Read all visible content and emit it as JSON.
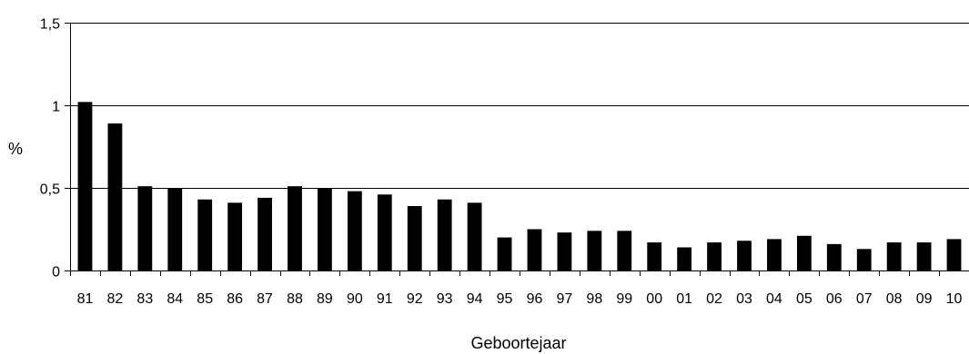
{
  "chart_data": {
    "type": "bar",
    "categories": [
      "81",
      "82",
      "83",
      "84",
      "85",
      "86",
      "87",
      "88",
      "89",
      "90",
      "91",
      "92",
      "93",
      "94",
      "95",
      "96",
      "97",
      "98",
      "99",
      "00",
      "01",
      "02",
      "03",
      "04",
      "05",
      "06",
      "07",
      "08",
      "09",
      "10"
    ],
    "values": [
      1.02,
      0.89,
      0.51,
      0.5,
      0.43,
      0.41,
      0.44,
      0.51,
      0.5,
      0.48,
      0.46,
      0.39,
      0.43,
      0.41,
      0.2,
      0.25,
      0.23,
      0.24,
      0.24,
      0.17,
      0.14,
      0.17,
      0.18,
      0.19,
      0.21,
      0.16,
      0.13,
      0.17,
      0.17,
      0.19
    ],
    "xlabel": "Geboortejaar",
    "ylabel": "%",
    "ylim": [
      0,
      1.5
    ],
    "yticks": [
      {
        "value": 0,
        "label": "0"
      },
      {
        "value": 0.5,
        "label": "0,5"
      },
      {
        "value": 1,
        "label": "1"
      },
      {
        "value": 1.5,
        "label": "1,5"
      }
    ],
    "grid": true,
    "bar_color": "#000000",
    "grid_color": "#000000"
  }
}
